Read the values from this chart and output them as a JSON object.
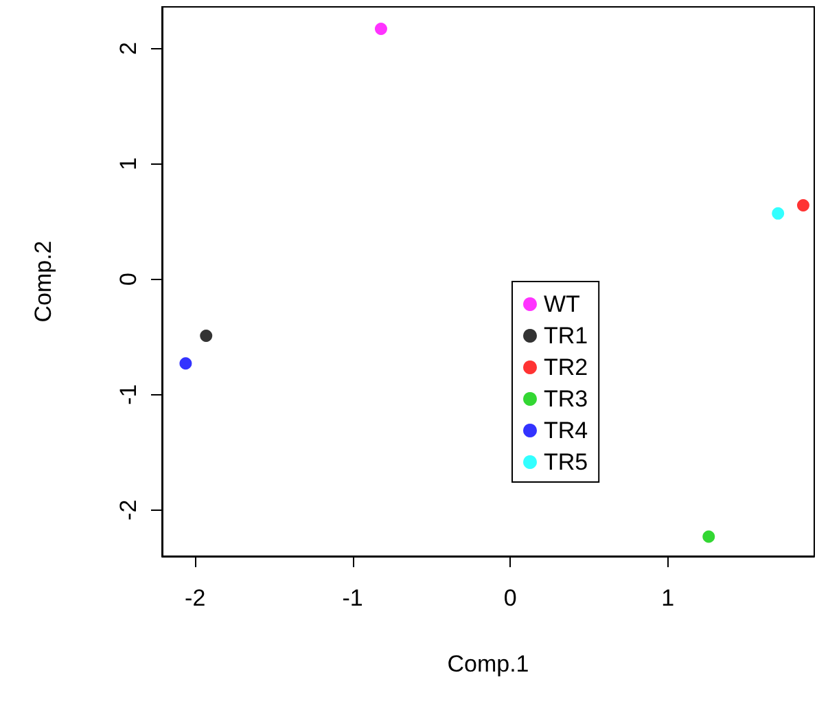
{
  "chart_data": {
    "type": "scatter",
    "xlabel": "Comp.1",
    "ylabel": "Comp.2",
    "xlim": [
      -2.21,
      1.93
    ],
    "ylim": [
      -2.4,
      2.36
    ],
    "xticks": [
      -2,
      -1,
      0,
      1
    ],
    "yticks": [
      -2,
      -1,
      0,
      1,
      2
    ],
    "grid": false,
    "legend": "center",
    "marker": "circle",
    "series": [
      {
        "name": "WT",
        "color": "#ff00ff",
        "x": [
          -0.82
        ],
        "values": [
          2.17
        ]
      },
      {
        "name": "TR1",
        "color": "#000000",
        "x": [
          -1.93
        ],
        "values": [
          -0.49
        ]
      },
      {
        "name": "TR2",
        "color": "#ff0000",
        "x": [
          1.86
        ],
        "values": [
          0.64
        ]
      },
      {
        "name": "TR3",
        "color": "#00cd00",
        "x": [
          1.26
        ],
        "values": [
          -2.23
        ]
      },
      {
        "name": "TR4",
        "color": "#0000ff",
        "x": [
          -2.06
        ],
        "values": [
          -0.73
        ]
      },
      {
        "name": "TR5",
        "color": "#00ffff",
        "x": [
          1.7
        ],
        "values": [
          0.57
        ]
      }
    ]
  }
}
